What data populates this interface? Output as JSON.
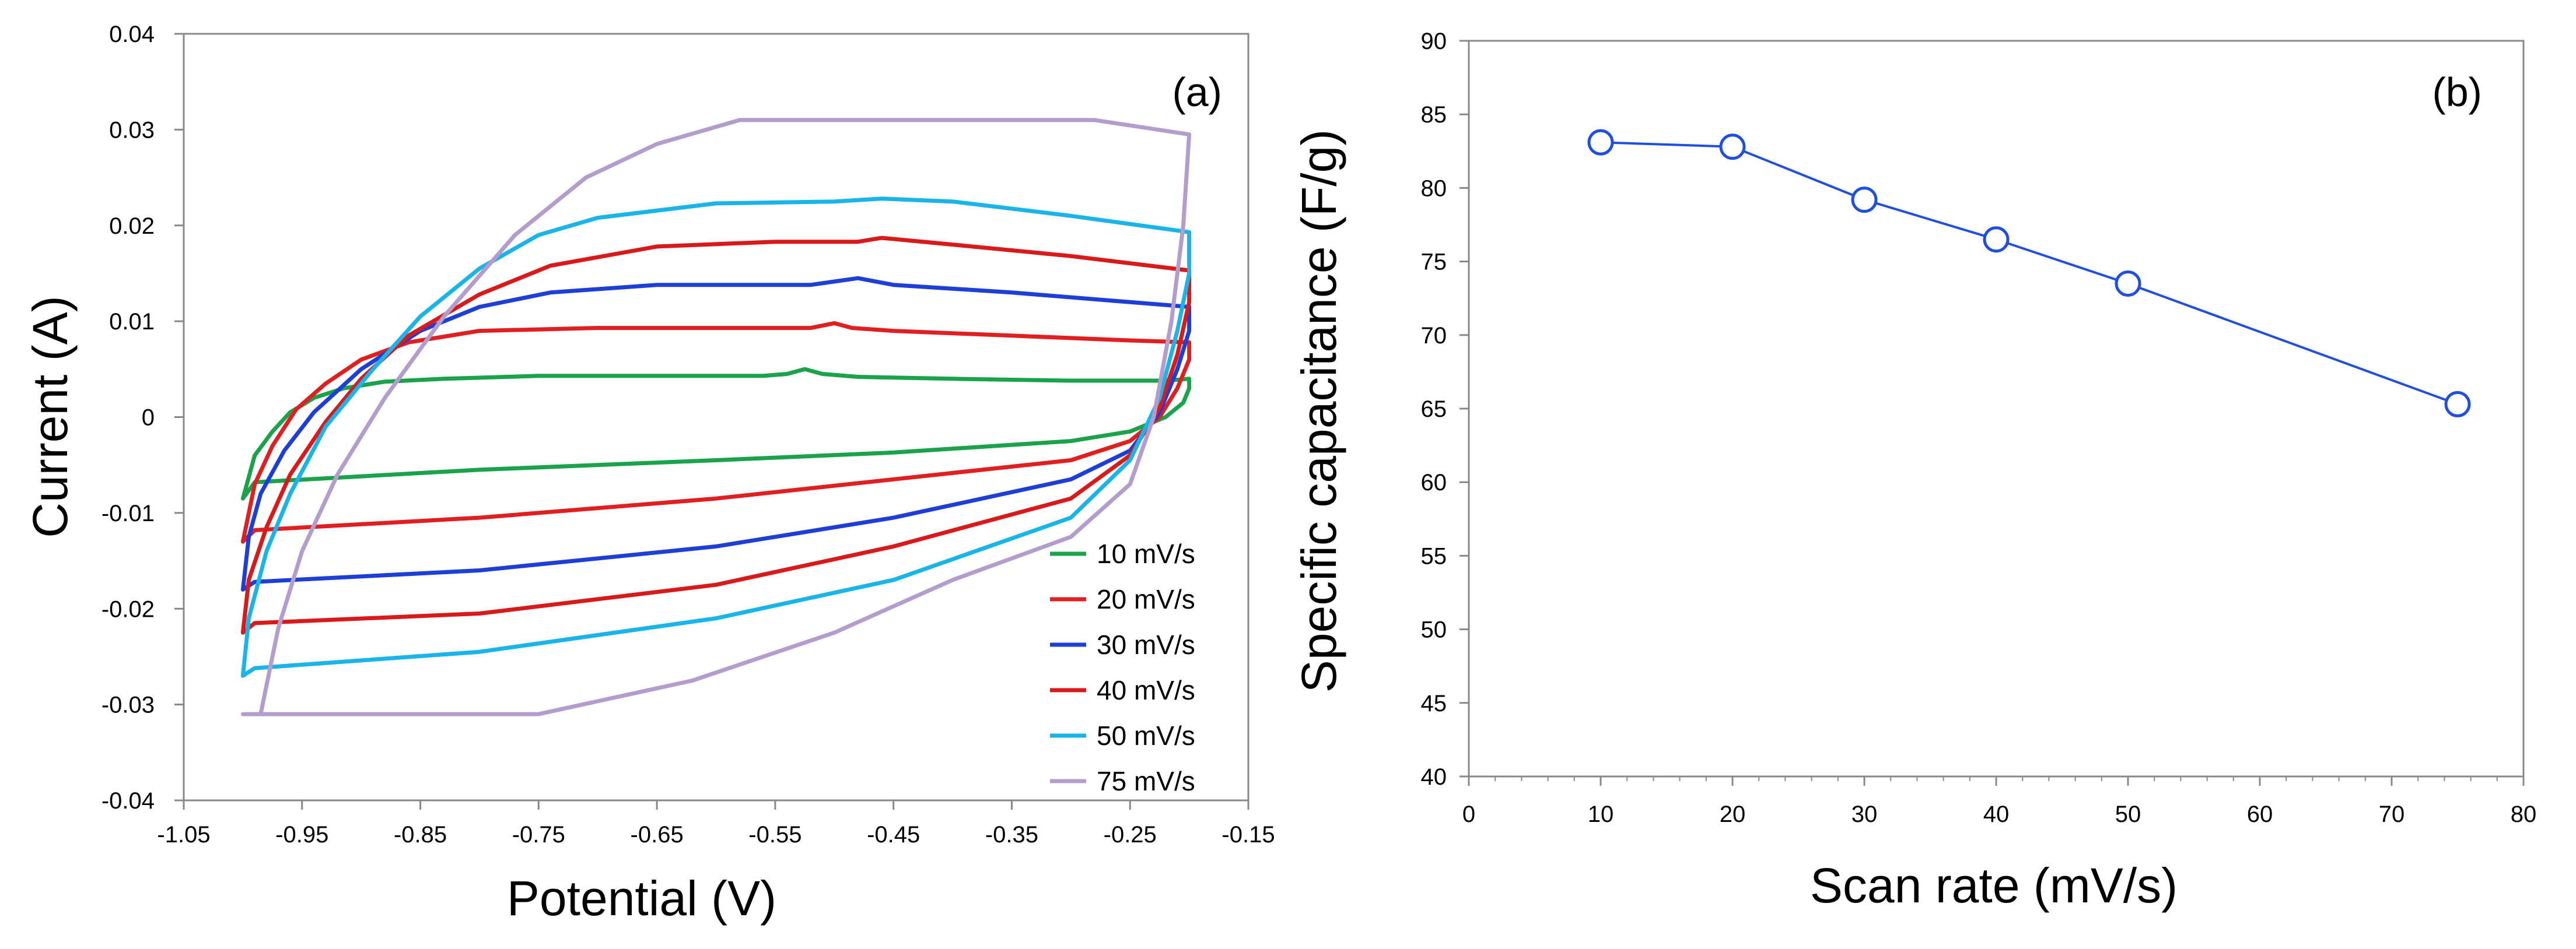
{
  "chart_data": [
    {
      "type": "line",
      "panel_label": "(a)",
      "xlabel": "Potential (V)",
      "ylabel": "Current (A)",
      "xlim": [
        -1.05,
        -0.15
      ],
      "ylim": [
        -0.04,
        0.04
      ],
      "xticks": [
        -1.05,
        -0.95,
        -0.85,
        -0.75,
        -0.65,
        -0.55,
        -0.45,
        -0.35,
        -0.25,
        -0.15
      ],
      "xtick_labels": [
        "-1.05",
        "-0.95",
        "-0.85",
        "-0.75",
        "-0.65",
        "-0.55",
        "-0.45",
        "-0.35",
        "-0.25",
        "-0.15"
      ],
      "yticks": [
        -0.04,
        -0.03,
        -0.02,
        -0.01,
        0,
        0.01,
        0.02,
        0.03,
        0.04
      ],
      "ytick_labels": [
        "-0.04",
        "-0.03",
        "-0.02",
        "-0.01",
        "0",
        "0.01",
        "0.02",
        "0.03",
        "0.04"
      ],
      "grid": false,
      "legend_position": "bottom-right",
      "series": [
        {
          "name": "10 mV/s",
          "color": "#1aa34a",
          "points": [
            [
              -1.0,
              -0.0085
            ],
            [
              -0.99,
              -0.004
            ],
            [
              -0.975,
              -0.0015
            ],
            [
              -0.96,
              0.0005
            ],
            [
              -0.94,
              0.002
            ],
            [
              -0.915,
              0.003
            ],
            [
              -0.88,
              0.0037
            ],
            [
              -0.83,
              0.004
            ],
            [
              -0.75,
              0.0043
            ],
            [
              -0.65,
              0.0043
            ],
            [
              -0.56,
              0.0043
            ],
            [
              -0.54,
              0.0045
            ],
            [
              -0.525,
              0.005
            ],
            [
              -0.51,
              0.0045
            ],
            [
              -0.48,
              0.0042
            ],
            [
              -0.4,
              0.004
            ],
            [
              -0.3,
              0.0038
            ],
            [
              -0.22,
              0.0038
            ],
            [
              -0.2,
              0.004
            ],
            [
              -0.2,
              0.003
            ],
            [
              -0.205,
              0.0015
            ],
            [
              -0.22,
              0.0
            ],
            [
              -0.25,
              -0.0015
            ],
            [
              -0.3,
              -0.0025
            ],
            [
              -0.45,
              -0.0037
            ],
            [
              -0.6,
              -0.0045
            ],
            [
              -0.8,
              -0.0055
            ],
            [
              -0.99,
              -0.0068
            ],
            [
              -1.0,
              -0.0085
            ]
          ]
        },
        {
          "name": "20 mV/s",
          "color": "#e02020",
          "points": [
            [
              -1.0,
              -0.013
            ],
            [
              -0.99,
              -0.007
            ],
            [
              -0.975,
              -0.003
            ],
            [
              -0.955,
              0.0008
            ],
            [
              -0.93,
              0.0035
            ],
            [
              -0.9,
              0.006
            ],
            [
              -0.86,
              0.0078
            ],
            [
              -0.8,
              0.009
            ],
            [
              -0.7,
              0.0093
            ],
            [
              -0.6,
              0.0093
            ],
            [
              -0.52,
              0.0093
            ],
            [
              -0.5,
              0.0098
            ],
            [
              -0.485,
              0.0093
            ],
            [
              -0.45,
              0.009
            ],
            [
              -0.35,
              0.0085
            ],
            [
              -0.25,
              0.008
            ],
            [
              -0.2,
              0.0078
            ],
            [
              -0.2,
              0.006
            ],
            [
              -0.21,
              0.003
            ],
            [
              -0.225,
              0.0
            ],
            [
              -0.25,
              -0.0025
            ],
            [
              -0.3,
              -0.0045
            ],
            [
              -0.45,
              -0.0065
            ],
            [
              -0.6,
              -0.0085
            ],
            [
              -0.8,
              -0.0105
            ],
            [
              -0.99,
              -0.0118
            ],
            [
              -1.0,
              -0.013
            ]
          ]
        },
        {
          "name": "30 mV/s",
          "color": "#1d3fd6",
          "points": [
            [
              -1.0,
              -0.018
            ],
            [
              -0.995,
              -0.0125
            ],
            [
              -0.985,
              -0.008
            ],
            [
              -0.965,
              -0.0035
            ],
            [
              -0.94,
              0.0005
            ],
            [
              -0.9,
              0.005
            ],
            [
              -0.85,
              0.009
            ],
            [
              -0.8,
              0.0115
            ],
            [
              -0.74,
              0.013
            ],
            [
              -0.65,
              0.0138
            ],
            [
              -0.52,
              0.0138
            ],
            [
              -0.48,
              0.0145
            ],
            [
              -0.45,
              0.0138
            ],
            [
              -0.35,
              0.013
            ],
            [
              -0.25,
              0.012
            ],
            [
              -0.2,
              0.0115
            ],
            [
              -0.2,
              0.009
            ],
            [
              -0.21,
              0.005
            ],
            [
              -0.225,
              0.0005
            ],
            [
              -0.25,
              -0.0035
            ],
            [
              -0.3,
              -0.0065
            ],
            [
              -0.45,
              -0.0105
            ],
            [
              -0.6,
              -0.0135
            ],
            [
              -0.8,
              -0.016
            ],
            [
              -0.99,
              -0.0172
            ],
            [
              -1.0,
              -0.018
            ]
          ]
        },
        {
          "name": "40 mV/s",
          "color": "#d91a1a",
          "points": [
            [
              -1.0,
              -0.0225
            ],
            [
              -0.995,
              -0.017
            ],
            [
              -0.98,
              -0.0115
            ],
            [
              -0.96,
              -0.006
            ],
            [
              -0.93,
              -0.0005
            ],
            [
              -0.9,
              0.004
            ],
            [
              -0.86,
              0.0085
            ],
            [
              -0.8,
              0.0128
            ],
            [
              -0.74,
              0.0158
            ],
            [
              -0.65,
              0.0178
            ],
            [
              -0.55,
              0.0183
            ],
            [
              -0.48,
              0.0183
            ],
            [
              -0.46,
              0.0187
            ],
            [
              -0.4,
              0.018
            ],
            [
              -0.3,
              0.0168
            ],
            [
              -0.2,
              0.0153
            ],
            [
              -0.2,
              0.012
            ],
            [
              -0.21,
              0.0065
            ],
            [
              -0.225,
              0.001
            ],
            [
              -0.25,
              -0.004
            ],
            [
              -0.3,
              -0.0085
            ],
            [
              -0.45,
              -0.0135
            ],
            [
              -0.6,
              -0.0175
            ],
            [
              -0.8,
              -0.0205
            ],
            [
              -0.99,
              -0.0215
            ],
            [
              -1.0,
              -0.0225
            ]
          ]
        },
        {
          "name": "50 mV/s",
          "color": "#19b5e8",
          "points": [
            [
              -1.0,
              -0.027
            ],
            [
              -0.995,
              -0.021
            ],
            [
              -0.98,
              -0.014
            ],
            [
              -0.96,
              -0.008
            ],
            [
              -0.93,
              -0.001
            ],
            [
              -0.89,
              0.005
            ],
            [
              -0.85,
              0.0105
            ],
            [
              -0.8,
              0.0155
            ],
            [
              -0.75,
              0.019
            ],
            [
              -0.7,
              0.0208
            ],
            [
              -0.6,
              0.0223
            ],
            [
              -0.5,
              0.0225
            ],
            [
              -0.46,
              0.0228
            ],
            [
              -0.4,
              0.0225
            ],
            [
              -0.3,
              0.021
            ],
            [
              -0.2,
              0.0193
            ],
            [
              -0.2,
              0.015
            ],
            [
              -0.21,
              0.009
            ],
            [
              -0.225,
              0.002
            ],
            [
              -0.25,
              -0.0045
            ],
            [
              -0.3,
              -0.0105
            ],
            [
              -0.45,
              -0.017
            ],
            [
              -0.6,
              -0.021
            ],
            [
              -0.8,
              -0.0245
            ],
            [
              -0.99,
              -0.0262
            ],
            [
              -1.0,
              -0.027
            ]
          ]
        },
        {
          "name": "75 mV/s",
          "color": "#b39dcc",
          "points": [
            [
              -1.0,
              -0.031
            ],
            [
              -0.985,
              -0.031
            ],
            [
              -0.98,
              -0.028
            ],
            [
              -0.97,
              -0.022
            ],
            [
              -0.95,
              -0.014
            ],
            [
              -0.92,
              -0.006
            ],
            [
              -0.88,
              0.002
            ],
            [
              -0.83,
              0.0105
            ],
            [
              -0.77,
              0.019
            ],
            [
              -0.71,
              0.025
            ],
            [
              -0.65,
              0.0285
            ],
            [
              -0.58,
              0.031
            ],
            [
              -0.28,
              0.031
            ],
            [
              -0.2,
              0.0295
            ],
            [
              -0.205,
              0.02
            ],
            [
              -0.215,
              0.01
            ],
            [
              -0.23,
              0.0
            ],
            [
              -0.25,
              -0.007
            ],
            [
              -0.3,
              -0.0125
            ],
            [
              -0.4,
              -0.017
            ],
            [
              -0.5,
              -0.0225
            ],
            [
              -0.62,
              -0.0275
            ],
            [
              -0.75,
              -0.031
            ],
            [
              -0.985,
              -0.031
            ]
          ]
        }
      ]
    },
    {
      "type": "line",
      "panel_label": "(b)",
      "xlabel": "Scan rate (mV/s)",
      "ylabel": "Specific capacitance (F/g)",
      "xlim": [
        0,
        80
      ],
      "ylim": [
        40,
        90
      ],
      "xticks": [
        0,
        10,
        20,
        30,
        40,
        50,
        60,
        70,
        80
      ],
      "xtick_labels": [
        "0",
        "10",
        "20",
        "30",
        "40",
        "50",
        "60",
        "70",
        "80"
      ],
      "yticks": [
        40,
        45,
        50,
        55,
        60,
        65,
        70,
        75,
        80,
        85,
        90
      ],
      "ytick_labels": [
        "40",
        "45",
        "50",
        "55",
        "60",
        "65",
        "70",
        "75",
        "80",
        "85",
        "90"
      ],
      "grid": false,
      "series": [
        {
          "name": "Specific capacitance",
          "color": "#1f4fe0",
          "marker": "open-circle",
          "x": [
            10,
            20,
            30,
            40,
            50,
            75
          ],
          "values": [
            83.1,
            82.8,
            79.2,
            76.5,
            73.5,
            65.3
          ]
        }
      ]
    }
  ]
}
